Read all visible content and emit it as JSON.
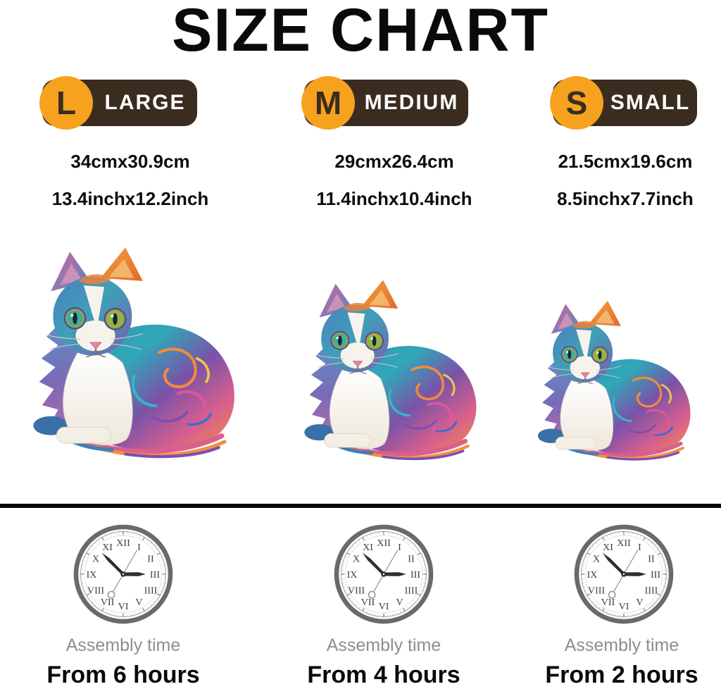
{
  "title": "SIZE CHART",
  "colors": {
    "accent_orange": "#f6a21e",
    "badge_brown": "#3b2c20",
    "divider_black": "#070707",
    "gray_text": "#8d8d8d"
  },
  "columns": [
    {
      "id": "large",
      "letter": "L",
      "label": "LARGE",
      "size_cm": "34cmx30.9cm",
      "size_inch": "13.4inchx12.2inch",
      "assembly_label": "Assembly time",
      "assembly_time": "From 6 hours"
    },
    {
      "id": "medium",
      "letter": "M",
      "label": "MEDIUM",
      "size_cm": "29cmx26.4cm",
      "size_inch": "11.4inchx10.4inch",
      "assembly_label": "Assembly time",
      "assembly_time": "From 4 hours"
    },
    {
      "id": "small",
      "letter": "S",
      "label": "SMALL",
      "size_cm": "21.5cmx19.6cm",
      "size_inch": "8.5inchx7.7inch",
      "assembly_label": "Assembly time",
      "assembly_time": "From 2 hours"
    }
  ],
  "clock": {
    "numerals": [
      "XII",
      "I",
      "II",
      "III",
      "IIII",
      "V",
      "VI",
      "VII",
      "VIII",
      "IX",
      "X",
      "XI"
    ]
  }
}
